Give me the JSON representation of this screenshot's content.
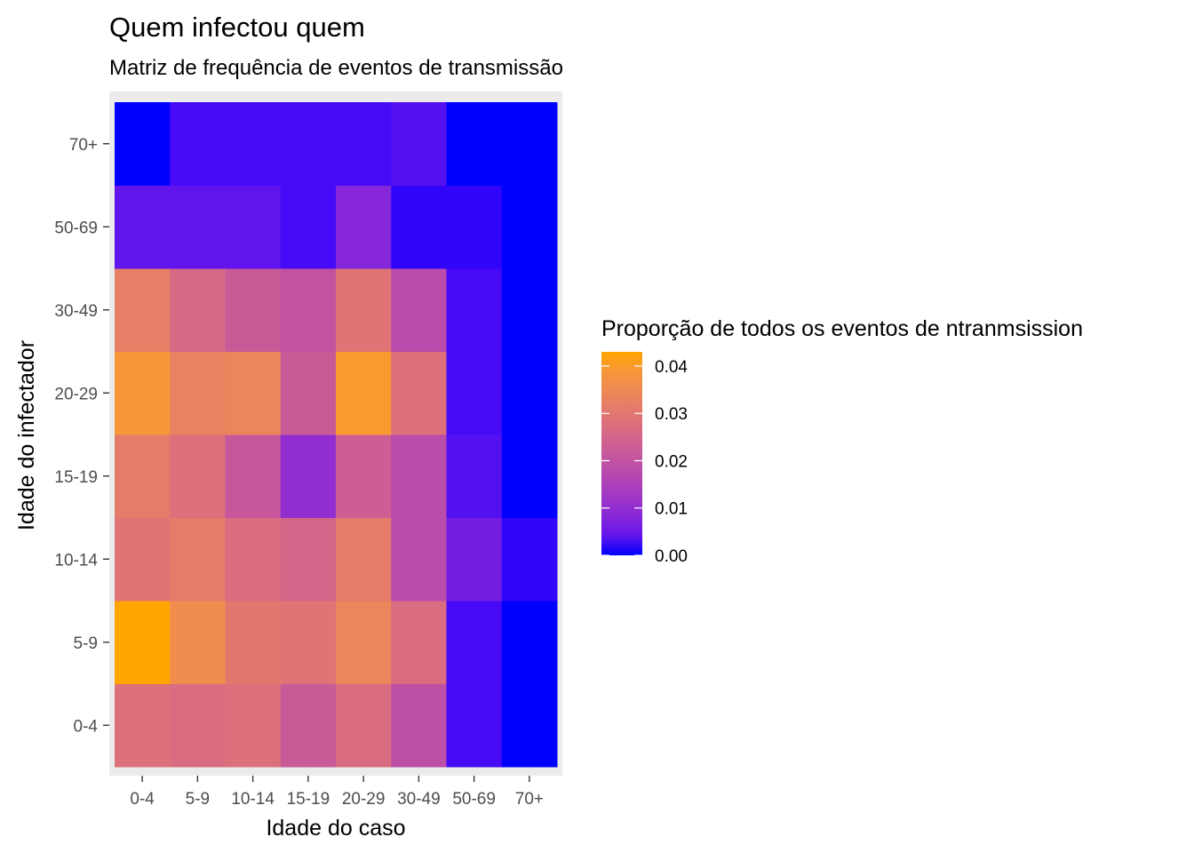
{
  "chart_data": {
    "type": "heatmap",
    "title": "Quem infectou quem",
    "subtitle": "Matriz de frequência de eventos de transmissão",
    "xlabel": "Idade do caso",
    "ylabel": "Idade do infectador",
    "x_categories": [
      "0-4",
      "5-9",
      "10-14",
      "15-19",
      "20-29",
      "30-49",
      "50-69",
      "70+"
    ],
    "y_categories": [
      "0-4",
      "5-9",
      "10-14",
      "15-19",
      "20-29",
      "30-49",
      "50-69",
      "70+"
    ],
    "values": [
      [
        0.028,
        0.027,
        0.028,
        0.022,
        0.027,
        0.019,
        0.002,
        0.0
      ],
      [
        0.043,
        0.036,
        0.03,
        0.029,
        0.034,
        0.027,
        0.002,
        0.0
      ],
      [
        0.029,
        0.031,
        0.027,
        0.025,
        0.031,
        0.018,
        0.006,
        0.001
      ],
      [
        0.031,
        0.028,
        0.021,
        0.01,
        0.023,
        0.018,
        0.003,
        0.0
      ],
      [
        0.039,
        0.033,
        0.034,
        0.022,
        0.04,
        0.028,
        0.002,
        0.0
      ],
      [
        0.032,
        0.026,
        0.022,
        0.02,
        0.029,
        0.018,
        0.002,
        0.0
      ],
      [
        0.004,
        0.004,
        0.004,
        0.002,
        0.008,
        0.001,
        0.001,
        0.0
      ],
      [
        0.0,
        0.002,
        0.002,
        0.002,
        0.002,
        0.003,
        0.0,
        0.0
      ]
    ],
    "color_scale": {
      "low": "#0000ff",
      "high": "#ffa500",
      "limits": [
        0,
        0.043
      ],
      "breaks": [
        0.0,
        0.01,
        0.02,
        0.03,
        0.04
      ],
      "break_labels": [
        "0.00",
        "0.01",
        "0.02",
        "0.03",
        "0.04"
      ]
    },
    "legend": {
      "title": "Proporção de todos os eventos de  ntranmsission",
      "position": "right"
    },
    "panel_background": "#ebebeb",
    "grid": false
  }
}
